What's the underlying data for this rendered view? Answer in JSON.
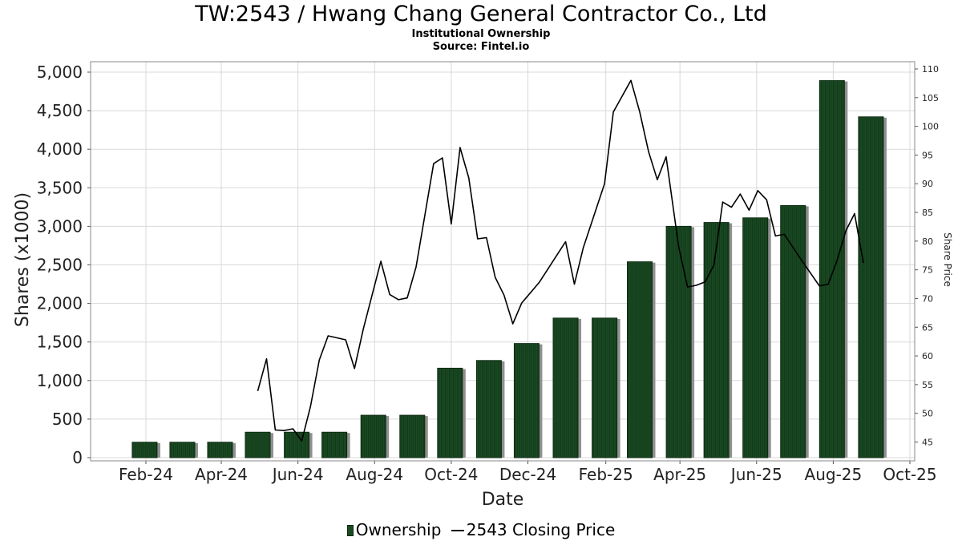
{
  "header": {
    "title": "TW:2543 / Hwang Chang General Contractor Co., Ltd",
    "subtitle1": "Institutional Ownership",
    "subtitle2": "Source: Fintel.io"
  },
  "legend": {
    "ownership_label": "Ownership",
    "price_label": "2543 Closing Price"
  },
  "chart_data": {
    "type": "bar",
    "xlabel": "Date",
    "ylabel": "Shares (x1000)",
    "y2label": "Share Price",
    "ylim": [
      0,
      5000
    ],
    "y2lim": [
      42,
      110
    ],
    "grid": true,
    "legend_position": "bottom",
    "colors": {
      "bar": "#1a4a22",
      "bar_shadow": "#909090",
      "line": "#000000",
      "grid": "#d9d9d9"
    },
    "x_ticks": [
      "Feb-24",
      "Apr-24",
      "Jun-24",
      "Aug-24",
      "Oct-24",
      "Dec-24",
      "Feb-25",
      "Apr-25",
      "Jun-25",
      "Aug-25",
      "Oct-25"
    ],
    "y_ticks": [
      "0",
      "500",
      "1,000",
      "1,500",
      "2,000",
      "2,500",
      "3,000",
      "3,500",
      "4,000",
      "4,500",
      "5,000"
    ],
    "y2_ticks": [
      "45",
      "50",
      "55",
      "60",
      "65",
      "70",
      "75",
      "80",
      "85",
      "90",
      "95",
      "100",
      "105",
      "110"
    ],
    "series": [
      {
        "name": "Ownership",
        "type": "bar",
        "points": [
          {
            "x": "2024-01-31",
            "y": 200
          },
          {
            "x": "2024-03-01",
            "y": 200
          },
          {
            "x": "2024-03-31",
            "y": 200
          },
          {
            "x": "2024-04-30",
            "y": 330
          },
          {
            "x": "2024-05-31",
            "y": 330
          },
          {
            "x": "2024-06-30",
            "y": 330
          },
          {
            "x": "2024-07-31",
            "y": 550
          },
          {
            "x": "2024-08-31",
            "y": 550
          },
          {
            "x": "2024-09-30",
            "y": 1160
          },
          {
            "x": "2024-10-31",
            "y": 1260
          },
          {
            "x": "2024-11-30",
            "y": 1480
          },
          {
            "x": "2024-12-31",
            "y": 1810
          },
          {
            "x": "2025-01-31",
            "y": 1810
          },
          {
            "x": "2025-02-28",
            "y": 2540
          },
          {
            "x": "2025-03-31",
            "y": 3000
          },
          {
            "x": "2025-04-30",
            "y": 3050
          },
          {
            "x": "2025-05-31",
            "y": 3110
          },
          {
            "x": "2025-06-30",
            "y": 3270
          },
          {
            "x": "2025-07-31",
            "y": 4890
          },
          {
            "x": "2025-08-31",
            "y": 4420
          }
        ]
      },
      {
        "name": "2543 Closing Price",
        "type": "line",
        "points": [
          {
            "x": "2024-04-30",
            "y": 53.9
          },
          {
            "x": "2024-05-07",
            "y": 59.5
          },
          {
            "x": "2024-05-14",
            "y": 47.1
          },
          {
            "x": "2024-05-21",
            "y": 47.0
          },
          {
            "x": "2024-05-28",
            "y": 47.3
          },
          {
            "x": "2024-06-04",
            "y": 45.2
          },
          {
            "x": "2024-06-11",
            "y": 51.2
          },
          {
            "x": "2024-06-18",
            "y": 59.3
          },
          {
            "x": "2024-06-25",
            "y": 63.5
          },
          {
            "x": "2024-07-09",
            "y": 62.8
          },
          {
            "x": "2024-07-16",
            "y": 57.8
          },
          {
            "x": "2024-07-23",
            "y": 64.7
          },
          {
            "x": "2024-08-06",
            "y": 76.5
          },
          {
            "x": "2024-08-13",
            "y": 70.7
          },
          {
            "x": "2024-08-20",
            "y": 69.8
          },
          {
            "x": "2024-08-27",
            "y": 70.1
          },
          {
            "x": "2024-09-03",
            "y": 75.5
          },
          {
            "x": "2024-09-17",
            "y": 93.5
          },
          {
            "x": "2024-09-24",
            "y": 94.5
          },
          {
            "x": "2024-10-01",
            "y": 83.0
          },
          {
            "x": "2024-10-08",
            "y": 96.3
          },
          {
            "x": "2024-10-15",
            "y": 91.0
          },
          {
            "x": "2024-10-22",
            "y": 80.4
          },
          {
            "x": "2024-10-29",
            "y": 80.6
          },
          {
            "x": "2024-11-05",
            "y": 73.7
          },
          {
            "x": "2024-11-12",
            "y": 70.6
          },
          {
            "x": "2024-11-19",
            "y": 65.6
          },
          {
            "x": "2024-11-26",
            "y": 69.2
          },
          {
            "x": "2024-12-10",
            "y": 72.8
          },
          {
            "x": "2024-12-31",
            "y": 79.9
          },
          {
            "x": "2025-01-07",
            "y": 72.5
          },
          {
            "x": "2025-01-14",
            "y": 78.8
          },
          {
            "x": "2025-01-31",
            "y": 90.0
          },
          {
            "x": "2025-02-07",
            "y": 102.5
          },
          {
            "x": "2025-02-21",
            "y": 108.0
          },
          {
            "x": "2025-02-28",
            "y": 102.5
          },
          {
            "x": "2025-03-07",
            "y": 95.6
          },
          {
            "x": "2025-03-14",
            "y": 90.7
          },
          {
            "x": "2025-03-21",
            "y": 94.7
          },
          {
            "x": "2025-03-31",
            "y": 79.0
          },
          {
            "x": "2025-04-07",
            "y": 72.0
          },
          {
            "x": "2025-04-14",
            "y": 72.3
          },
          {
            "x": "2025-04-21",
            "y": 72.9
          },
          {
            "x": "2025-04-28",
            "y": 75.8
          },
          {
            "x": "2025-05-05",
            "y": 86.8
          },
          {
            "x": "2025-05-12",
            "y": 85.9
          },
          {
            "x": "2025-05-19",
            "y": 88.2
          },
          {
            "x": "2025-05-26",
            "y": 85.4
          },
          {
            "x": "2025-06-02",
            "y": 88.8
          },
          {
            "x": "2025-06-09",
            "y": 87.2
          },
          {
            "x": "2025-06-16",
            "y": 80.9
          },
          {
            "x": "2025-06-23",
            "y": 81.2
          },
          {
            "x": "2025-07-07",
            "y": 76.6
          },
          {
            "x": "2025-07-14",
            "y": 74.4
          },
          {
            "x": "2025-07-21",
            "y": 72.2
          },
          {
            "x": "2025-07-28",
            "y": 72.5
          },
          {
            "x": "2025-08-04",
            "y": 76.6
          },
          {
            "x": "2025-08-11",
            "y": 81.8
          },
          {
            "x": "2025-08-18",
            "y": 84.8
          },
          {
            "x": "2025-08-25",
            "y": 76.2
          }
        ]
      }
    ]
  }
}
